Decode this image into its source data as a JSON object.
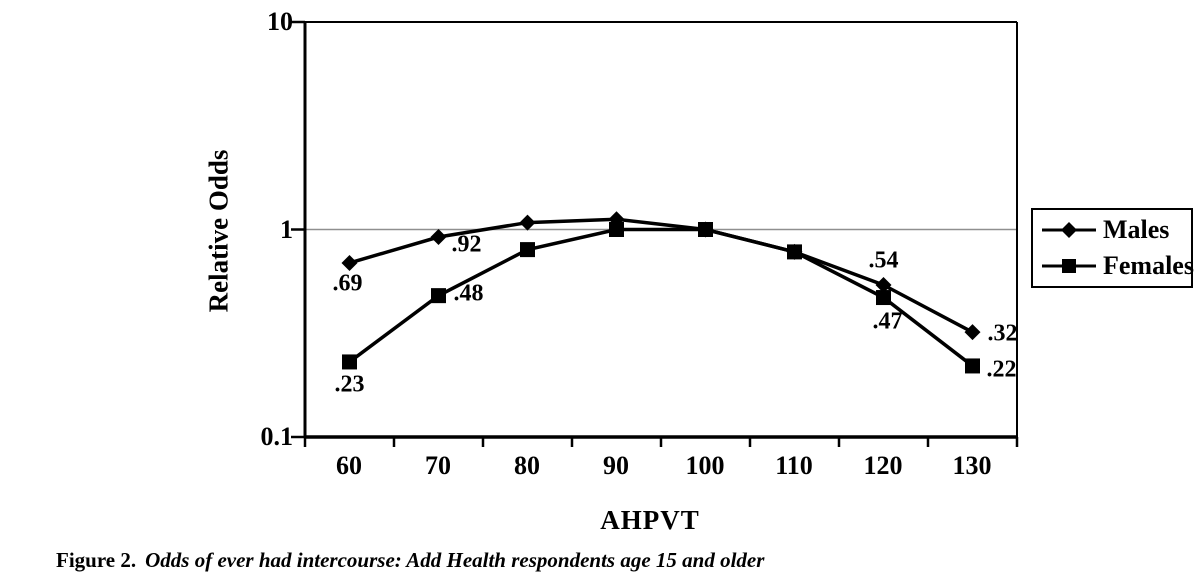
{
  "figure": {
    "caption_prefix": "Figure 2.",
    "caption_text": "Odds of ever had intercourse: Add Health respondents age 15 and older"
  },
  "chart_data": {
    "type": "line",
    "title": "",
    "xlabel": "AHPVT",
    "ylabel": "Relative Odds",
    "x": [
      60,
      70,
      80,
      90,
      100,
      110,
      120,
      130
    ],
    "y_scale": "log",
    "ylim": [
      0.1,
      10
    ],
    "y_ticks": [
      10,
      1,
      0.1
    ],
    "y_tick_labels": [
      "10",
      "1",
      "0.1"
    ],
    "grid": {
      "y_reference_line": 1
    },
    "legend_position": "outside-right",
    "series": [
      {
        "name": "Males",
        "marker": "diamond",
        "color": "#000000",
        "values": [
          0.69,
          0.92,
          1.08,
          1.12,
          1.0,
          0.78,
          0.54,
          0.32
        ],
        "point_labels": [
          {
            "text": ".69",
            "dx": -2,
            "dy": 21
          },
          {
            "text": ".92",
            "dx": 28,
            "dy": 8
          },
          null,
          null,
          null,
          null,
          {
            "text": ".54",
            "dx": 0,
            "dy": -24
          },
          {
            "text": ".32",
            "dx": 30,
            "dy": 2
          }
        ]
      },
      {
        "name": "Females",
        "marker": "square",
        "color": "#000000",
        "values": [
          0.23,
          0.48,
          0.8,
          1.0,
          1.0,
          0.78,
          0.47,
          0.22
        ],
        "point_labels": [
          {
            "text": ".23",
            "dx": 0,
            "dy": 23
          },
          {
            "text": ".48",
            "dx": 30,
            "dy": -2
          },
          null,
          null,
          null,
          null,
          {
            "text": ".47",
            "dx": 4,
            "dy": 24
          },
          {
            "text": ".22",
            "dx": 29,
            "dy": 4
          }
        ]
      }
    ]
  },
  "colors": {
    "ink": "#000000",
    "grid_line": "#8f8f8f",
    "background": "#ffffff"
  }
}
